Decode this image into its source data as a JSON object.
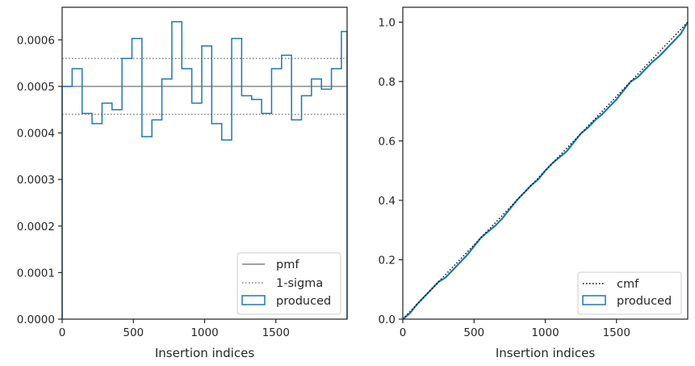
{
  "chart_data": [
    {
      "type": "histogram-step",
      "xlabel": "Insertion indices",
      "ylabel": "",
      "title": "",
      "xlim": [
        0,
        2000
      ],
      "ylim": [
        0,
        0.00067
      ],
      "xticks": [
        0,
        500,
        1000,
        1500
      ],
      "xtick_labels": [
        "0",
        "500",
        "1000",
        "1500"
      ],
      "yticks": [
        0,
        0.0001,
        0.0002,
        0.0003,
        0.0004,
        0.0005,
        0.0006
      ],
      "ytick_labels": [
        "0.0000",
        "0.0001",
        "0.0002",
        "0.0003",
        "0.0004",
        "0.0005",
        "0.0006"
      ],
      "grid": false,
      "legend_position": "lower-right",
      "reference_lines": [
        {
          "name": "pmf",
          "y": 0.0005,
          "color": "#808080",
          "style": "solid"
        },
        {
          "name": "1-sigma",
          "y": 0.00056,
          "color": "#808080",
          "style": "dotted"
        },
        {
          "name": "1-sigma",
          "y": 0.00044,
          "color": "#808080",
          "style": "dotted"
        }
      ],
      "series": [
        {
          "name": "produced",
          "color": "#1f77b4",
          "bin_edges": [
            0,
            70,
            140,
            210,
            280,
            350,
            420,
            490,
            560,
            630,
            700,
            770,
            840,
            910,
            980,
            1050,
            1120,
            1190,
            1260,
            1330,
            1400,
            1470,
            1540,
            1610,
            1680,
            1750,
            1820,
            1890,
            1960,
            2000
          ],
          "values": [
            0.0005,
            0.000538,
            0.000442,
            0.00042,
            0.000464,
            0.00045,
            0.00056,
            0.000603,
            0.000392,
            0.000428,
            0.000516,
            0.000639,
            0.000538,
            0.000464,
            0.000587,
            0.00042,
            0.000385,
            0.000603,
            0.00048,
            0.000472,
            0.000442,
            0.000538,
            0.000567,
            0.000428,
            0.00048,
            0.000516,
            0.000494,
            0.000538,
            0.000618
          ]
        }
      ]
    },
    {
      "type": "line",
      "xlabel": "Insertion indices",
      "ylabel": "",
      "title": "",
      "xlim": [
        0,
        2000
      ],
      "ylim": [
        0,
        1.05
      ],
      "xticks": [
        0,
        500,
        1000,
        1500
      ],
      "xtick_labels": [
        "0",
        "500",
        "1000",
        "1500"
      ],
      "yticks": [
        0,
        0.2,
        0.4,
        0.6,
        0.8,
        1.0
      ],
      "ytick_labels": [
        "0.0",
        "0.2",
        "0.4",
        "0.6",
        "0.8",
        "1.0"
      ],
      "grid": false,
      "legend_position": "lower-right",
      "series": [
        {
          "name": "cmf",
          "color": "#000000",
          "style": "dotted",
          "x": [
            0,
            2000
          ],
          "y": [
            0,
            1.0
          ]
        },
        {
          "name": "produced",
          "color": "#1f77b4",
          "style": "solid",
          "x": [
            0,
            50,
            100,
            150,
            200,
            250,
            300,
            350,
            400,
            450,
            500,
            550,
            600,
            650,
            700,
            750,
            800,
            850,
            900,
            950,
            1000,
            1050,
            1100,
            1150,
            1200,
            1250,
            1300,
            1350,
            1400,
            1450,
            1500,
            1550,
            1600,
            1650,
            1700,
            1750,
            1800,
            1850,
            1900,
            1950,
            2000
          ],
          "y": [
            0,
            0.02,
            0.05,
            0.075,
            0.1,
            0.125,
            0.14,
            0.165,
            0.19,
            0.215,
            0.245,
            0.275,
            0.295,
            0.315,
            0.34,
            0.37,
            0.4,
            0.425,
            0.45,
            0.47,
            0.5,
            0.525,
            0.545,
            0.565,
            0.595,
            0.625,
            0.645,
            0.67,
            0.69,
            0.715,
            0.74,
            0.77,
            0.8,
            0.815,
            0.84,
            0.865,
            0.885,
            0.91,
            0.935,
            0.96,
            1.0
          ]
        }
      ]
    }
  ]
}
